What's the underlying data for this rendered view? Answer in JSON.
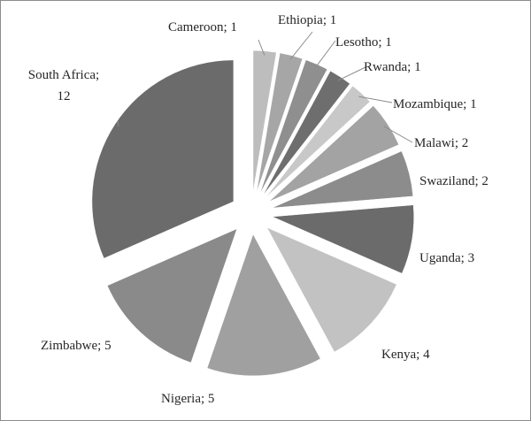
{
  "chart_data": {
    "type": "pie",
    "exploded": true,
    "title": "",
    "slices": [
      {
        "label": "Cameroon",
        "value": 1,
        "color": "#bdbdbd"
      },
      {
        "label": "Ethiopia",
        "value": 1,
        "color": "#a6a6a6"
      },
      {
        "label": "Lesotho",
        "value": 1,
        "color": "#8f8f8f"
      },
      {
        "label": "Rwanda",
        "value": 1,
        "color": "#6e6e6e"
      },
      {
        "label": "Mozambique",
        "value": 1,
        "color": "#c8c8c8"
      },
      {
        "label": "Malawi",
        "value": 2,
        "color": "#a3a3a3"
      },
      {
        "label": "Swaziland",
        "value": 2,
        "color": "#8c8c8c"
      },
      {
        "label": "Uganda",
        "value": 3,
        "color": "#6b6b6b"
      },
      {
        "label": "Kenya",
        "value": 4,
        "color": "#c2c2c2"
      },
      {
        "label": "Nigeria",
        "value": 5,
        "color": "#a0a0a0"
      },
      {
        "label": "Zimbabwe",
        "value": 5,
        "color": "#8a8a8a"
      },
      {
        "label": "South Africa",
        "value": 12,
        "color": "#6b6b6b"
      }
    ],
    "label_format": "{label}; {value}"
  }
}
